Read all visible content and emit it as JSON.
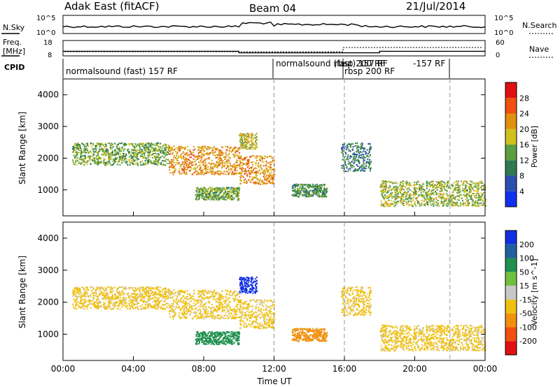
{
  "header": {
    "station": "Adak East (fitACF)",
    "beam": "Beam 04",
    "date": "21/Jul/2014"
  },
  "left_labels": {
    "nsky": "N.Sky",
    "freq_line1": "Freq.",
    "freq_line2": "[MHz]",
    "cpid": "CPID"
  },
  "right_labels": {
    "nsearch": "N.Search",
    "nave": "Nave"
  },
  "noise_axis": {
    "top": "10^5",
    "bottom": "10^0"
  },
  "freq_axis": {
    "left_top": "18",
    "left_bottom": "8",
    "right_top": "60",
    "right_bottom": "0"
  },
  "cpid_labels": {
    "a": "normalsound (fast) 157 RF",
    "b": "normalsound (fast) 157 RF",
    "c": "rbsp 200 RF",
    "d": "rbsp 200 RF",
    "e": "-157 RF"
  },
  "time_ticks": [
    "00:00",
    "04:00",
    "08:00",
    "12:00",
    "16:00",
    "20:00",
    "00:00"
  ],
  "xlabel": "Time UT",
  "ylabel": "Slant Range [km]",
  "range_ticks": [
    "1000",
    "2000",
    "3000",
    "4000"
  ],
  "power_colorbar": {
    "label": "Power [dB]",
    "ticks": [
      "4",
      "8",
      "12",
      "16",
      "20",
      "24",
      "28"
    ],
    "colors": [
      "#1030f0",
      "#2a50b0",
      "#2f7a50",
      "#5aa040",
      "#d0c020",
      "#e09010",
      "#f05010",
      "#e01010"
    ]
  },
  "velocity_colorbar": {
    "label": "Velocity [m s^-1]",
    "ticks": [
      "200",
      "100",
      "50",
      "15",
      "-15",
      "-50",
      "-100",
      "-200"
    ],
    "colors": [
      "#1030e0",
      "#2060a0",
      "#209050",
      "#70c040",
      "#c8c8c8",
      "#f0c010",
      "#f09010",
      "#f05010",
      "#e01010"
    ]
  },
  "chart_data": {
    "type": "heatmap",
    "x_range_hours": [
      0,
      24
    ],
    "y_range_km": [
      180,
      4500
    ],
    "mode_change_hours": [
      12,
      16,
      22
    ],
    "nsky_level": 10,
    "freq_steps": [
      {
        "start_hour": 0,
        "end_hour": 10,
        "mhz": 11
      },
      {
        "start_hour": 10,
        "end_hour": 18,
        "mhz": 10
      },
      {
        "start_hour": 18,
        "end_hour": 24,
        "mhz": 11
      }
    ],
    "echo_regions": [
      {
        "start_hour": 0.5,
        "end_hour": 6,
        "range_km": [
          1800,
          2500
        ],
        "power_db": 12,
        "velocity": -15
      },
      {
        "start_hour": 6,
        "end_hour": 10,
        "range_km": [
          1500,
          2400
        ],
        "power_db": 20,
        "velocity": -15
      },
      {
        "start_hour": 7.5,
        "end_hour": 10,
        "range_km": [
          700,
          1100
        ],
        "power_db": 12,
        "velocity": 50
      },
      {
        "start_hour": 10,
        "end_hour": 12,
        "range_km": [
          1200,
          2100
        ],
        "power_db": 20,
        "velocity": -15
      },
      {
        "start_hour": 13,
        "end_hour": 15,
        "range_km": [
          800,
          1200
        ],
        "power_db": 10,
        "velocity": -50
      },
      {
        "start_hour": 15.8,
        "end_hour": 17.5,
        "range_km": [
          1600,
          2500
        ],
        "power_db": 8,
        "velocity": -15
      },
      {
        "start_hour": 18,
        "end_hour": 24,
        "range_km": [
          500,
          1300
        ],
        "power_db": 14,
        "velocity": -15
      },
      {
        "start_hour": 10,
        "end_hour": 11,
        "range_km": [
          2300,
          2800
        ],
        "power_db": 16,
        "velocity": 200
      }
    ]
  }
}
